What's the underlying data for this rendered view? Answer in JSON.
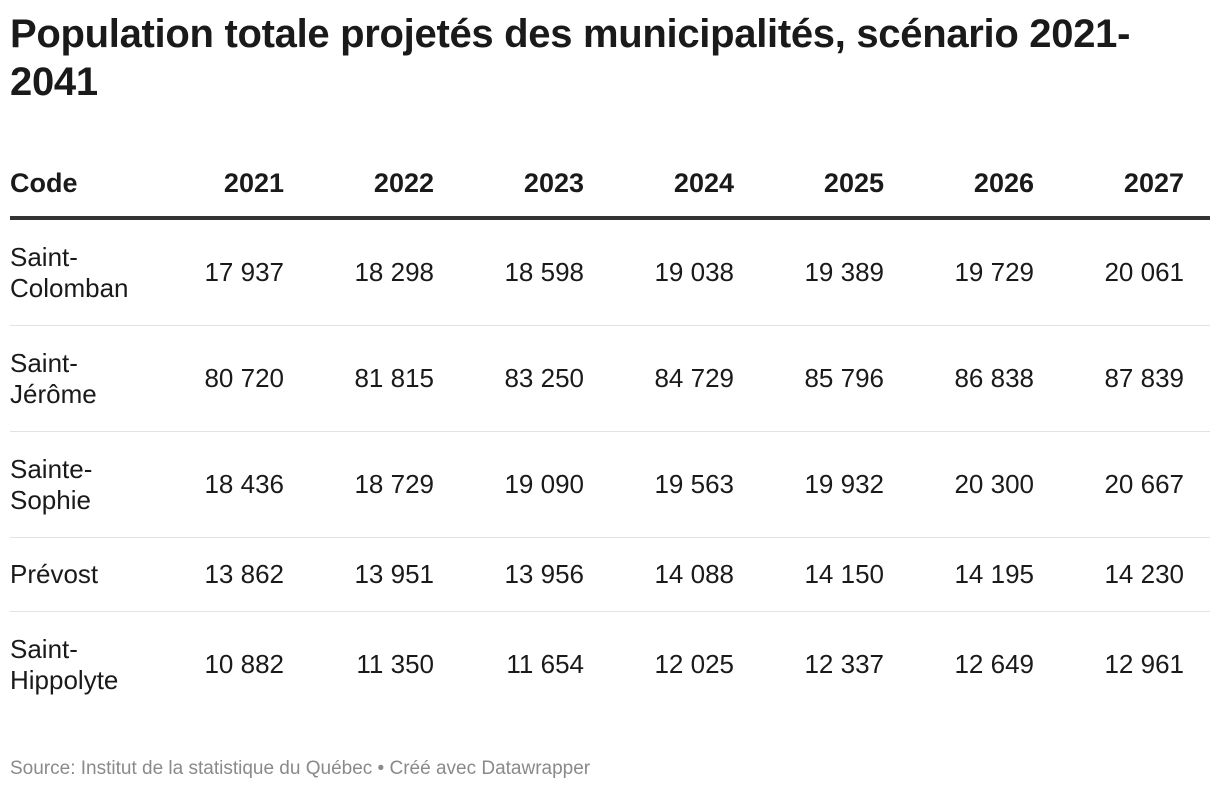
{
  "title": "Population totale projetés des municipalités, scénario 2021-2041",
  "source": "Source: Institut de la statistique du Québec • Créé avec Datawrapper",
  "chart_data": {
    "type": "table",
    "title": "Population totale projetés des municipalités, scénario 2021-2041",
    "columns": [
      "Code",
      "2021",
      "2022",
      "2023",
      "2024",
      "2025",
      "2026",
      "2027"
    ],
    "rows": [
      {
        "code": [
          "Saint-",
          "Colomban"
        ],
        "values": [
          "17 937",
          "18 298",
          "18 598",
          "19 038",
          "19 389",
          "19 729",
          "20 061"
        ]
      },
      {
        "code": [
          "Saint-",
          "Jérôme"
        ],
        "values": [
          "80 720",
          "81 815",
          "83 250",
          "84 729",
          "85 796",
          "86 838",
          "87 839"
        ]
      },
      {
        "code": [
          "Sainte-",
          "Sophie"
        ],
        "values": [
          "18 436",
          "18 729",
          "19 090",
          "19 563",
          "19 932",
          "20 300",
          "20 667"
        ]
      },
      {
        "code": [
          "Prévost"
        ],
        "values": [
          "13 862",
          "13 951",
          "13 956",
          "14 088",
          "14 150",
          "14 195",
          "14 230"
        ]
      },
      {
        "code": [
          "Saint-",
          "Hippolyte"
        ],
        "values": [
          "10 882",
          "11 350",
          "11 654",
          "12 025",
          "12 337",
          "12 649",
          "12 961"
        ]
      }
    ]
  }
}
